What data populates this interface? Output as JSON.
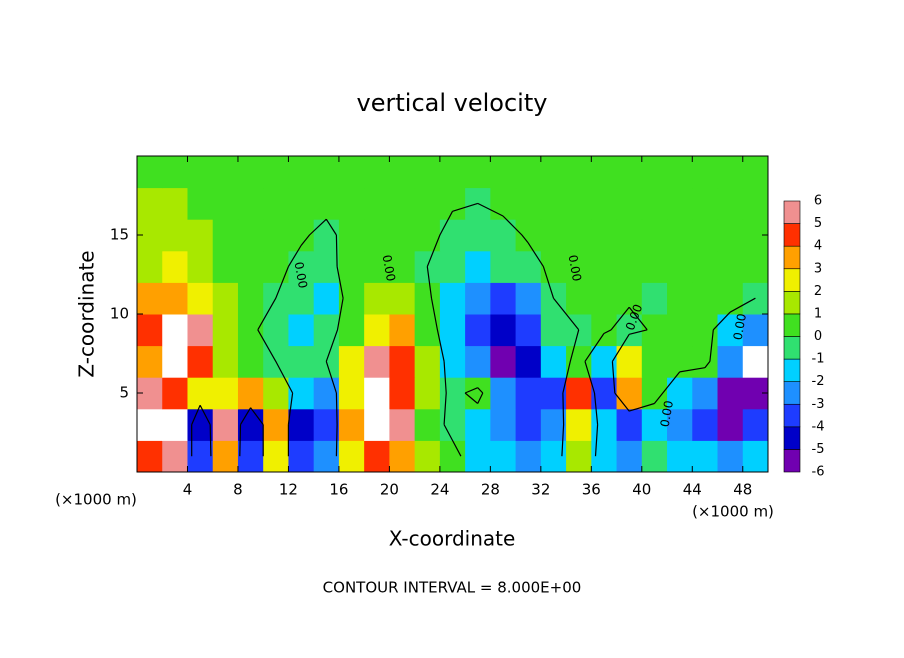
{
  "chart_data": {
    "type": "heatmap",
    "title": "vertical velocity",
    "x_label": "X-coordinate",
    "y_label": "Z-coordinate",
    "x_unit": "(×1000 m)",
    "footer": "CONTOUR INTERVAL = 8.000E+00",
    "contour_label": "0.00",
    "contour_levels": [
      -8,
      0,
      8
    ],
    "xlim": [
      0,
      50
    ],
    "ylim": [
      0,
      20
    ],
    "xticks": [
      4,
      8,
      12,
      16,
      20,
      24,
      28,
      32,
      36,
      40,
      44,
      48
    ],
    "yticks": [
      5,
      10,
      15
    ],
    "x": [
      1,
      3,
      5,
      7,
      9,
      11,
      13,
      15,
      17,
      19,
      21,
      23,
      25,
      27,
      29,
      31,
      33,
      35,
      37,
      39,
      41,
      43,
      45,
      47,
      49
    ],
    "y": [
      1,
      3,
      5,
      7,
      9,
      11,
      13,
      15,
      17,
      19
    ],
    "z": [
      [
        5,
        6,
        -3,
        4,
        -3,
        3,
        -3,
        -2,
        3,
        5,
        4,
        2,
        0.5,
        -1,
        -1.5,
        -2,
        -1,
        2,
        -1,
        -2,
        -0.5,
        -1,
        -1.5,
        -2,
        -1
      ],
      [
        7,
        8,
        -4,
        6,
        -4,
        4,
        -4,
        -3,
        4,
        8,
        6,
        1,
        -0.5,
        -1,
        -2.5,
        -3.5,
        -2,
        3,
        -1,
        -3,
        -1,
        -2,
        -3,
        -5,
        -3
      ],
      [
        6,
        5,
        2.5,
        3,
        3.5,
        2,
        -1,
        -2,
        3,
        7,
        5,
        1.5,
        -0.5,
        0.5,
        -2,
        -3,
        -3,
        5,
        -3,
        4,
        0.5,
        -1,
        -2,
        -6,
        -5
      ],
      [
        4,
        8,
        5,
        2,
        0.5,
        0,
        -0.5,
        0,
        2.5,
        6,
        5,
        2,
        -1,
        -2.5,
        -6,
        -4,
        -1,
        0.5,
        -1.5,
        3,
        1,
        0.5,
        0.5,
        -2,
        -7
      ],
      [
        5,
        7,
        5.5,
        1.5,
        0.2,
        -0.5,
        -1,
        -0.8,
        1,
        3,
        3.5,
        1,
        -1.5,
        -3,
        -4.5,
        -3,
        -0.5,
        0,
        0.2,
        -0.5,
        0.2,
        0.8,
        0.5,
        -1,
        -2
      ],
      [
        3.5,
        4,
        3,
        1.5,
        0.5,
        0,
        -0.5,
        -1,
        0.5,
        1.5,
        1.5,
        0.3,
        -1.5,
        -2.5,
        -3.5,
        -2,
        0,
        0.4,
        0.5,
        0.2,
        0,
        0.3,
        0.6,
        0.8,
        0
      ],
      [
        2,
        2.2,
        1.8,
        1,
        0.4,
        0.2,
        -0.2,
        -0.3,
        0.4,
        0.8,
        0.6,
        0,
        -0.8,
        -1.2,
        -0.9,
        -0.3,
        0.2,
        0.4,
        0.5,
        0.4,
        0.3,
        0.2,
        0.3,
        0.5,
        0.6
      ],
      [
        1.5,
        1.5,
        1.2,
        0.8,
        0.3,
        0.2,
        0.1,
        -0.2,
        0.3,
        0.5,
        0.6,
        0.3,
        -0.3,
        -0.6,
        -0.3,
        0.1,
        0.4,
        0.6,
        0.8,
        0.8,
        0.6,
        0.3,
        0.2,
        0.3,
        0.5
      ],
      [
        1.2,
        1.2,
        1,
        0.8,
        0.5,
        0.3,
        0.2,
        0.2,
        0.2,
        0.3,
        0.4,
        0.2,
        0.1,
        0,
        0.2,
        0.3,
        0.4,
        0.6,
        0.8,
        1,
        1,
        0.7,
        0.3,
        0.2,
        0.4
      ],
      [
        0.8,
        0.8,
        0.7,
        0.6,
        0.5,
        0.4,
        0.3,
        0.3,
        0.2,
        0.2,
        0.2,
        0.2,
        0.1,
        0.2,
        0.3,
        0.3,
        0.3,
        0.4,
        0.5,
        0.6,
        0.8,
        0.8,
        0.5,
        0.3,
        0.5
      ]
    ],
    "levels": [
      -6,
      -5,
      -4,
      -3,
      -2,
      -1,
      0,
      1,
      2,
      3,
      4,
      5,
      6
    ],
    "colors": [
      "#7000b0",
      "#0000c8",
      "#1e3cff",
      "#1e90ff",
      "#00d0ff",
      "#30e070",
      "#40e020",
      "#a8e800",
      "#f0f000",
      "#ffa000",
      "#ff3000",
      "#f09090"
    ],
    "out_of_range_color": "#ffffff"
  }
}
